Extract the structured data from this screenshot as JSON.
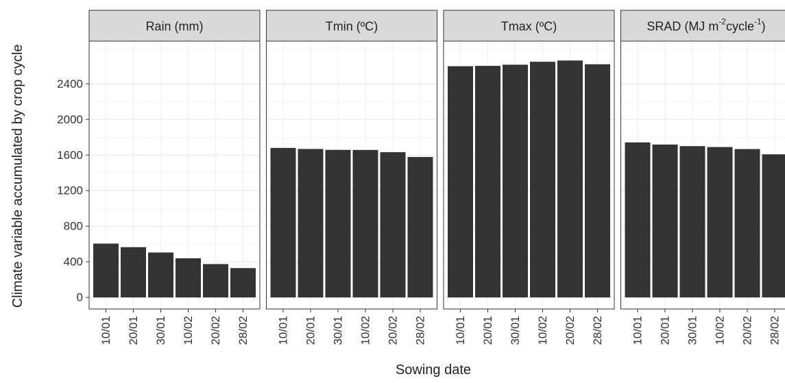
{
  "chart_data": {
    "type": "bar",
    "ylabel": "Climate variable accumulated by crop cycle",
    "xlabel": "Sowing date",
    "categories": [
      "10/01",
      "20/01",
      "30/01",
      "10/02",
      "20/02",
      "28/02"
    ],
    "y_ticks": [
      0,
      400,
      800,
      1200,
      1600,
      2000,
      2400
    ],
    "ylim": [
      -130,
      2880
    ],
    "grid": true,
    "bar_color": "#333333",
    "strip_color": "#d9d9d9",
    "panels": [
      {
        "title": "Rain (mm)",
        "values": [
          605,
          565,
          505,
          440,
          375,
          330
        ]
      },
      {
        "title": "Tmin (ºC)",
        "values": [
          1680,
          1668,
          1658,
          1657,
          1632,
          1578
        ]
      },
      {
        "title": "Tmax (ºC)",
        "values": [
          2598,
          2602,
          2615,
          2648,
          2662,
          2620
        ]
      },
      {
        "title_prefix": "SRAD (MJ m",
        "title_sup1": "-2",
        "title_mid": "cycle",
        "title_sup2": "-1",
        "title_suffix": ")",
        "values": [
          1742,
          1718,
          1700,
          1690,
          1667,
          1608
        ]
      }
    ]
  }
}
